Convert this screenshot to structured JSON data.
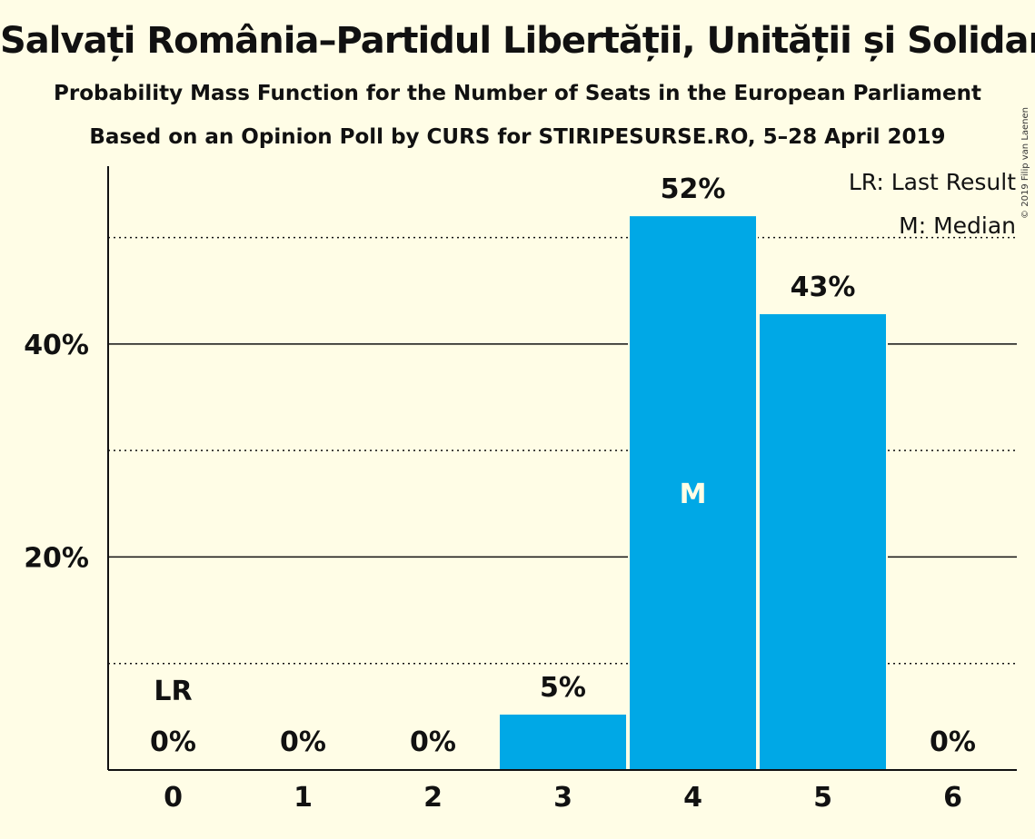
{
  "chart_data": {
    "type": "bar",
    "title": "Salvați România–Partidul Libertății, Unității și Solidarității",
    "subtitle": "Probability Mass Function for the Number of Seats in the European Parliament",
    "subtitle2": "Based on an Opinion Poll by CURS for STIRIPESURSE.RO, 5–28 April 2019",
    "copyright": "© 2019 Filip van Laenen",
    "categories": [
      "0",
      "1",
      "2",
      "3",
      "4",
      "5",
      "6"
    ],
    "values": [
      0,
      0,
      0,
      5.2,
      52,
      42.8,
      0
    ],
    "value_labels": [
      "0%",
      "0%",
      "0%",
      "5%",
      "52%",
      "43%",
      "0%"
    ],
    "ylim": [
      0,
      56.7
    ],
    "yticks": [
      20,
      40
    ],
    "ytick_labels": [
      "20%",
      "40%"
    ],
    "minor_gridlines": [
      10,
      30,
      50
    ],
    "grid": true,
    "last_result_category": "0",
    "last_result_marker": "LR",
    "median_category": "4",
    "median_marker": "M",
    "legend": [
      "LR: Last Result",
      "M: Median"
    ],
    "legend_position": "top-right",
    "bar_color": "#00a8e6"
  }
}
